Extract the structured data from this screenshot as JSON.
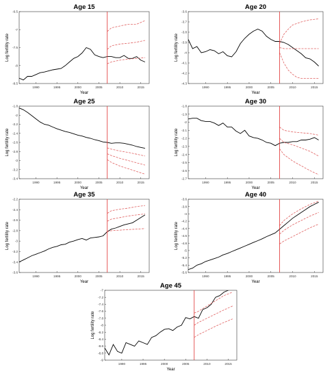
{
  "figure": {
    "colors": {
      "observed": "#000000",
      "forecast": "#e06060",
      "jumpoff": "#e03030",
      "axis": "#333333"
    }
  },
  "chart_data": [
    {
      "type": "line",
      "title": "Age 15",
      "xlabel": "Year",
      "ylabel": "Log fertility rate",
      "xlim": [
        1986,
        2017
      ],
      "ylim": [
        -8.5,
        -6.5
      ],
      "xticks": [
        "1990",
        "1995",
        "2000",
        "2005",
        "2010",
        "2015"
      ],
      "yticks": [
        "-8.5",
        "-8",
        "-7.5",
        "-7",
        "-6.5"
      ],
      "jumpoff_year": 2007,
      "series": [
        {
          "kind": "observed",
          "x": [
            1986,
            1987,
            1988,
            1989,
            1990,
            1991,
            1992,
            1993,
            1994,
            1995,
            1996,
            1997,
            1998,
            1999,
            2000,
            2001,
            2002,
            2003,
            2004,
            2005,
            2006,
            2007,
            2008,
            2009,
            2010,
            2011,
            2012,
            2013,
            2014,
            2015,
            2016
          ],
          "y": [
            -8.35,
            -8.4,
            -8.3,
            -8.3,
            -8.25,
            -8.2,
            -8.18,
            -8.15,
            -8.12,
            -8.1,
            -8.08,
            -8.0,
            -7.9,
            -7.8,
            -7.75,
            -7.65,
            -7.5,
            -7.55,
            -7.7,
            -7.75,
            -7.78,
            -7.75,
            -7.75,
            -7.78,
            -7.78,
            -7.72,
            -7.8,
            -7.8,
            -7.75,
            -7.85,
            -7.9
          ]
        },
        {
          "kind": "forecast",
          "x": [
            2007,
            2008,
            2010,
            2012,
            2014,
            2016
          ],
          "y": [
            -7.05,
            -6.95,
            -6.9,
            -6.85,
            -6.85,
            -6.75
          ]
        },
        {
          "kind": "forecast",
          "x": [
            2007,
            2008,
            2010,
            2012,
            2014,
            2016
          ],
          "y": [
            -7.55,
            -7.45,
            -7.4,
            -7.38,
            -7.35,
            -7.3
          ]
        },
        {
          "kind": "forecast",
          "x": [
            2007,
            2008,
            2010,
            2012,
            2014,
            2016
          ],
          "y": [
            -7.95,
            -7.9,
            -7.85,
            -7.82,
            -7.8,
            -7.78
          ]
        }
      ]
    },
    {
      "type": "line",
      "title": "Age 20",
      "xlabel": "Year",
      "ylabel": "Log fertility rate",
      "xlim": [
        1986,
        2017
      ],
      "ylim": [
        -4.3,
        -3.6
      ],
      "xticks": [
        "1990",
        "1995",
        "2000",
        "2005",
        "2010",
        "2015"
      ],
      "yticks": [
        "-4.3",
        "-4.2",
        "-4.1",
        "-4",
        "-3.9",
        "-3.8",
        "-3.7",
        "-3.6"
      ],
      "jumpoff_year": 2007,
      "series": [
        {
          "kind": "observed",
          "x": [
            1986,
            1987,
            1988,
            1989,
            1990,
            1991,
            1992,
            1993,
            1994,
            1995,
            1996,
            1997,
            1998,
            1999,
            2000,
            2001,
            2002,
            2003,
            2004,
            2005,
            2006,
            2007,
            2008,
            2009,
            2010,
            2011,
            2012,
            2013,
            2014,
            2015,
            2016
          ],
          "y": [
            -3.87,
            -3.96,
            -3.94,
            -4.0,
            -3.99,
            -3.97,
            -3.98,
            -4.01,
            -3.99,
            -4.03,
            -4.04,
            -3.99,
            -3.91,
            -3.86,
            -3.82,
            -3.79,
            -3.77,
            -3.79,
            -3.84,
            -3.87,
            -3.89,
            -3.89,
            -3.9,
            -3.92,
            -3.95,
            -3.98,
            -4.01,
            -4.05,
            -4.06,
            -4.09,
            -4.13
          ]
        },
        {
          "kind": "forecast",
          "x": [
            2007,
            2008,
            2009,
            2010,
            2012,
            2014,
            2016
          ],
          "y": [
            -3.91,
            -3.82,
            -3.77,
            -3.73,
            -3.7,
            -3.68,
            -3.67
          ]
        },
        {
          "kind": "forecast",
          "x": [
            2007,
            2008,
            2010,
            2012,
            2014,
            2016
          ],
          "y": [
            -3.95,
            -3.96,
            -3.96,
            -3.96,
            -3.96,
            -3.96
          ]
        },
        {
          "kind": "forecast",
          "x": [
            2007,
            2008,
            2009,
            2010,
            2011,
            2012,
            2014,
            2016
          ],
          "y": [
            -4.0,
            -4.1,
            -4.17,
            -4.21,
            -4.24,
            -4.25,
            -4.25,
            -4.25
          ]
        }
      ]
    },
    {
      "type": "line",
      "title": "Age 25",
      "xlabel": "Year",
      "ylabel": "Log fertility rate",
      "xlim": [
        1986,
        2017
      ],
      "ylim": [
        -3.4,
        -1.8
      ],
      "xticks": [
        "1990",
        "1995",
        "2000",
        "2005",
        "2010",
        "2015"
      ],
      "yticks": [
        "-3.4",
        "-3.2",
        "-3",
        "-2.8",
        "-2.6",
        "-2.4",
        "-2.2",
        "-2",
        "-1.8"
      ],
      "jumpoff_year": 2007,
      "series": [
        {
          "kind": "observed",
          "x": [
            1986,
            1987,
            1988,
            1989,
            1990,
            1991,
            1992,
            1993,
            1994,
            1995,
            1996,
            1997,
            1998,
            1999,
            2000,
            2001,
            2002,
            2003,
            2004,
            2005,
            2006,
            2007,
            2008,
            2009,
            2010,
            2011,
            2012,
            2013,
            2014,
            2015,
            2016
          ],
          "y": [
            -1.84,
            -1.88,
            -1.94,
            -2.01,
            -2.08,
            -2.15,
            -2.2,
            -2.22,
            -2.26,
            -2.3,
            -2.33,
            -2.36,
            -2.38,
            -2.41,
            -2.44,
            -2.46,
            -2.49,
            -2.51,
            -2.54,
            -2.56,
            -2.59,
            -2.6,
            -2.62,
            -2.61,
            -2.61,
            -2.62,
            -2.64,
            -2.66,
            -2.69,
            -2.71,
            -2.73
          ]
        },
        {
          "kind": "forecast",
          "x": [
            2007,
            2008,
            2010,
            2012,
            2014,
            2016
          ],
          "y": [
            -2.72,
            -2.75,
            -2.79,
            -2.82,
            -2.86,
            -2.9
          ]
        },
        {
          "kind": "forecast",
          "x": [
            2007,
            2008,
            2010,
            2012,
            2014,
            2016
          ],
          "y": [
            -2.85,
            -2.89,
            -2.95,
            -3.0,
            -3.05,
            -3.1
          ]
        },
        {
          "kind": "forecast",
          "x": [
            2007,
            2008,
            2010,
            2012,
            2014,
            2016
          ],
          "y": [
            -2.98,
            -3.04,
            -3.12,
            -3.18,
            -3.24,
            -3.3
          ]
        }
      ]
    },
    {
      "type": "line",
      "title": "Age 30",
      "xlabel": "Year",
      "ylabel": "Log fertility rate",
      "xlim": [
        1986,
        2017
      ],
      "ylim": [
        -2.7,
        -1.8
      ],
      "xticks": [
        "1990",
        "1995",
        "2000",
        "2005",
        "2010",
        "2015"
      ],
      "yticks": [
        "-2.7",
        "-2.6",
        "-2.5",
        "-2.4",
        "-2.3",
        "-2.2",
        "-2.1",
        "-2",
        "-1.9",
        "-1.8"
      ],
      "jumpoff_year": 2007,
      "series": [
        {
          "kind": "observed",
          "x": [
            1986,
            1987,
            1988,
            1989,
            1990,
            1991,
            1992,
            1993,
            1994,
            1995,
            1996,
            1997,
            1998,
            1999,
            2000,
            2001,
            2002,
            2003,
            2004,
            2005,
            2006,
            2007,
            2008,
            2009,
            2010,
            2011,
            2012,
            2013,
            2014,
            2015,
            2016
          ],
          "y": [
            -1.96,
            -1.95,
            -1.95,
            -1.98,
            -1.99,
            -1.99,
            -2.01,
            -2.04,
            -2.01,
            -2.06,
            -2.06,
            -2.11,
            -2.14,
            -2.1,
            -2.17,
            -2.19,
            -2.2,
            -2.22,
            -2.25,
            -2.26,
            -2.29,
            -2.26,
            -2.25,
            -2.25,
            -2.24,
            -2.24,
            -2.22,
            -2.22,
            -2.21,
            -2.19,
            -2.22
          ]
        },
        {
          "kind": "forecast",
          "x": [
            2007,
            2008,
            2010,
            2012,
            2014,
            2016
          ],
          "y": [
            -2.06,
            -2.1,
            -2.12,
            -2.13,
            -2.14,
            -2.16
          ]
        },
        {
          "kind": "forecast",
          "x": [
            2007,
            2008,
            2010,
            2012,
            2014,
            2016
          ],
          "y": [
            -2.2,
            -2.25,
            -2.28,
            -2.32,
            -2.36,
            -2.42
          ]
        },
        {
          "kind": "forecast",
          "x": [
            2007,
            2008,
            2010,
            2012,
            2014,
            2016
          ],
          "y": [
            -2.33,
            -2.4,
            -2.48,
            -2.54,
            -2.6,
            -2.65
          ]
        }
      ]
    },
    {
      "type": "line",
      "title": "Age 35",
      "xlabel": "Year",
      "ylabel": "Log fertility rate",
      "xlim": [
        1986,
        2017
      ],
      "ylim": [
        -3.6,
        -2.2
      ],
      "xticks": [
        "1990",
        "1995",
        "2000",
        "2005",
        "2010",
        "2015"
      ],
      "yticks": [
        "-3.6",
        "-3.4",
        "-3.2",
        "-3",
        "-2.8",
        "-2.6",
        "-2.4",
        "-2.2"
      ],
      "jumpoff_year": 2007,
      "series": [
        {
          "kind": "observed",
          "x": [
            1986,
            1987,
            1988,
            1989,
            1990,
            1991,
            1992,
            1993,
            1994,
            1995,
            1996,
            1997,
            1998,
            1999,
            2000,
            2001,
            2002,
            2003,
            2004,
            2005,
            2006,
            2007,
            2008,
            2009,
            2010,
            2011,
            2012,
            2013,
            2014,
            2015,
            2016
          ],
          "y": [
            -3.4,
            -3.36,
            -3.32,
            -3.28,
            -3.25,
            -3.22,
            -3.19,
            -3.15,
            -3.12,
            -3.1,
            -3.07,
            -3.06,
            -3.02,
            -3.0,
            -2.97,
            -2.95,
            -2.98,
            -2.94,
            -2.93,
            -2.92,
            -2.9,
            -2.82,
            -2.77,
            -2.75,
            -2.72,
            -2.69,
            -2.67,
            -2.65,
            -2.6,
            -2.55,
            -2.5
          ]
        },
        {
          "kind": "forecast",
          "x": [
            2007,
            2008,
            2010,
            2012,
            2014,
            2016
          ],
          "y": [
            -2.47,
            -2.42,
            -2.39,
            -2.37,
            -2.34,
            -2.32
          ]
        },
        {
          "kind": "forecast",
          "x": [
            2007,
            2008,
            2010,
            2012,
            2014,
            2016
          ],
          "y": [
            -2.62,
            -2.58,
            -2.55,
            -2.52,
            -2.5,
            -2.48
          ]
        },
        {
          "kind": "forecast",
          "x": [
            2007,
            2008,
            2010,
            2012,
            2014,
            2016
          ],
          "y": [
            -2.82,
            -2.8,
            -2.79,
            -2.78,
            -2.77,
            -2.76
          ]
        }
      ]
    },
    {
      "type": "line",
      "title": "Age 40",
      "xlabel": "Year",
      "ylabel": "Log fertility rate",
      "xlim": [
        1986,
        2017
      ],
      "ylim": [
        -5.6,
        -3.6
      ],
      "xticks": [
        "1990",
        "1995",
        "2000",
        "2005",
        "2010",
        "2015"
      ],
      "yticks": [
        "-5.6",
        "-5.4",
        "-5.2",
        "-5",
        "-4.8",
        "-4.6",
        "-4.4",
        "-4.2",
        "-4",
        "-3.8",
        "-3.6"
      ],
      "jumpoff_year": 2007,
      "series": [
        {
          "kind": "observed",
          "x": [
            1986,
            1987,
            1988,
            1989,
            1990,
            1991,
            1992,
            1993,
            1994,
            1995,
            1996,
            1997,
            1998,
            1999,
            2000,
            2001,
            2002,
            2003,
            2004,
            2005,
            2006,
            2007,
            2008,
            2009,
            2010,
            2011,
            2012,
            2013,
            2014,
            2015,
            2016
          ],
          "y": [
            -5.52,
            -5.48,
            -5.4,
            -5.36,
            -5.3,
            -5.26,
            -5.22,
            -5.18,
            -5.12,
            -5.08,
            -5.03,
            -4.98,
            -4.93,
            -4.88,
            -4.83,
            -4.78,
            -4.73,
            -4.68,
            -4.62,
            -4.57,
            -4.52,
            -4.42,
            -4.32,
            -4.22,
            -4.12,
            -4.04,
            -3.96,
            -3.88,
            -3.8,
            -3.74,
            -3.68
          ]
        },
        {
          "kind": "forecast",
          "x": [
            2007,
            2008,
            2010,
            2012,
            2014,
            2016
          ],
          "y": [
            -4.32,
            -4.18,
            -4.0,
            -3.86,
            -3.74,
            -3.65
          ]
        },
        {
          "kind": "forecast",
          "x": [
            2007,
            2008,
            2010,
            2012,
            2014,
            2016
          ],
          "y": [
            -4.55,
            -4.45,
            -4.3,
            -4.18,
            -4.06,
            -3.96
          ]
        },
        {
          "kind": "forecast",
          "x": [
            2007,
            2008,
            2010,
            2012,
            2014,
            2016
          ],
          "y": [
            -4.82,
            -4.74,
            -4.62,
            -4.5,
            -4.38,
            -4.28
          ]
        }
      ]
    },
    {
      "type": "line",
      "title": "Age 45",
      "xlabel": "Year",
      "ylabel": "Log fertility rate",
      "xlim": [
        1986,
        2017
      ],
      "ylim": [
        -9,
        -7
      ],
      "xticks": [
        "1990",
        "1995",
        "2000",
        "2005",
        "2010",
        "2015"
      ],
      "yticks": [
        "-9",
        "-8.8",
        "-8.6",
        "-8.4",
        "-8.2",
        "-8",
        "-7.8",
        "-7.6",
        "-7.4",
        "-7.2",
        "-7"
      ],
      "jumpoff_year": 2007,
      "series": [
        {
          "kind": "observed",
          "x": [
            1986,
            1987,
            1988,
            1989,
            1990,
            1991,
            1992,
            1993,
            1994,
            1995,
            1996,
            1997,
            1998,
            1999,
            2000,
            2001,
            2002,
            2003,
            2004,
            2005,
            2006,
            2007,
            2008,
            2009,
            2010,
            2011,
            2012,
            2013,
            2014,
            2015,
            2016
          ],
          "y": [
            -8.65,
            -8.85,
            -8.55,
            -8.75,
            -8.8,
            -8.5,
            -8.55,
            -8.6,
            -8.45,
            -8.5,
            -8.55,
            -8.35,
            -8.3,
            -8.2,
            -8.12,
            -8.1,
            -8.15,
            -8.05,
            -8.0,
            -7.78,
            -7.82,
            -7.75,
            -7.8,
            -7.55,
            -7.5,
            -7.4,
            -7.2,
            -7.15,
            -7.05,
            -7.0,
            -6.95
          ]
        },
        {
          "kind": "forecast",
          "x": [
            2007,
            2008,
            2010,
            2012,
            2014,
            2016
          ],
          "y": [
            -7.65,
            -7.6,
            -7.45,
            -7.3,
            -7.15,
            -7.05
          ]
        },
        {
          "kind": "forecast",
          "x": [
            2007,
            2008,
            2010,
            2012,
            2014,
            2016
          ],
          "y": [
            -8.0,
            -7.92,
            -7.8,
            -7.68,
            -7.56,
            -7.45
          ]
        },
        {
          "kind": "forecast",
          "x": [
            2007,
            2008,
            2010,
            2012,
            2014,
            2016
          ],
          "y": [
            -8.35,
            -8.27,
            -8.15,
            -8.03,
            -7.92,
            -7.82
          ]
        }
      ]
    }
  ]
}
